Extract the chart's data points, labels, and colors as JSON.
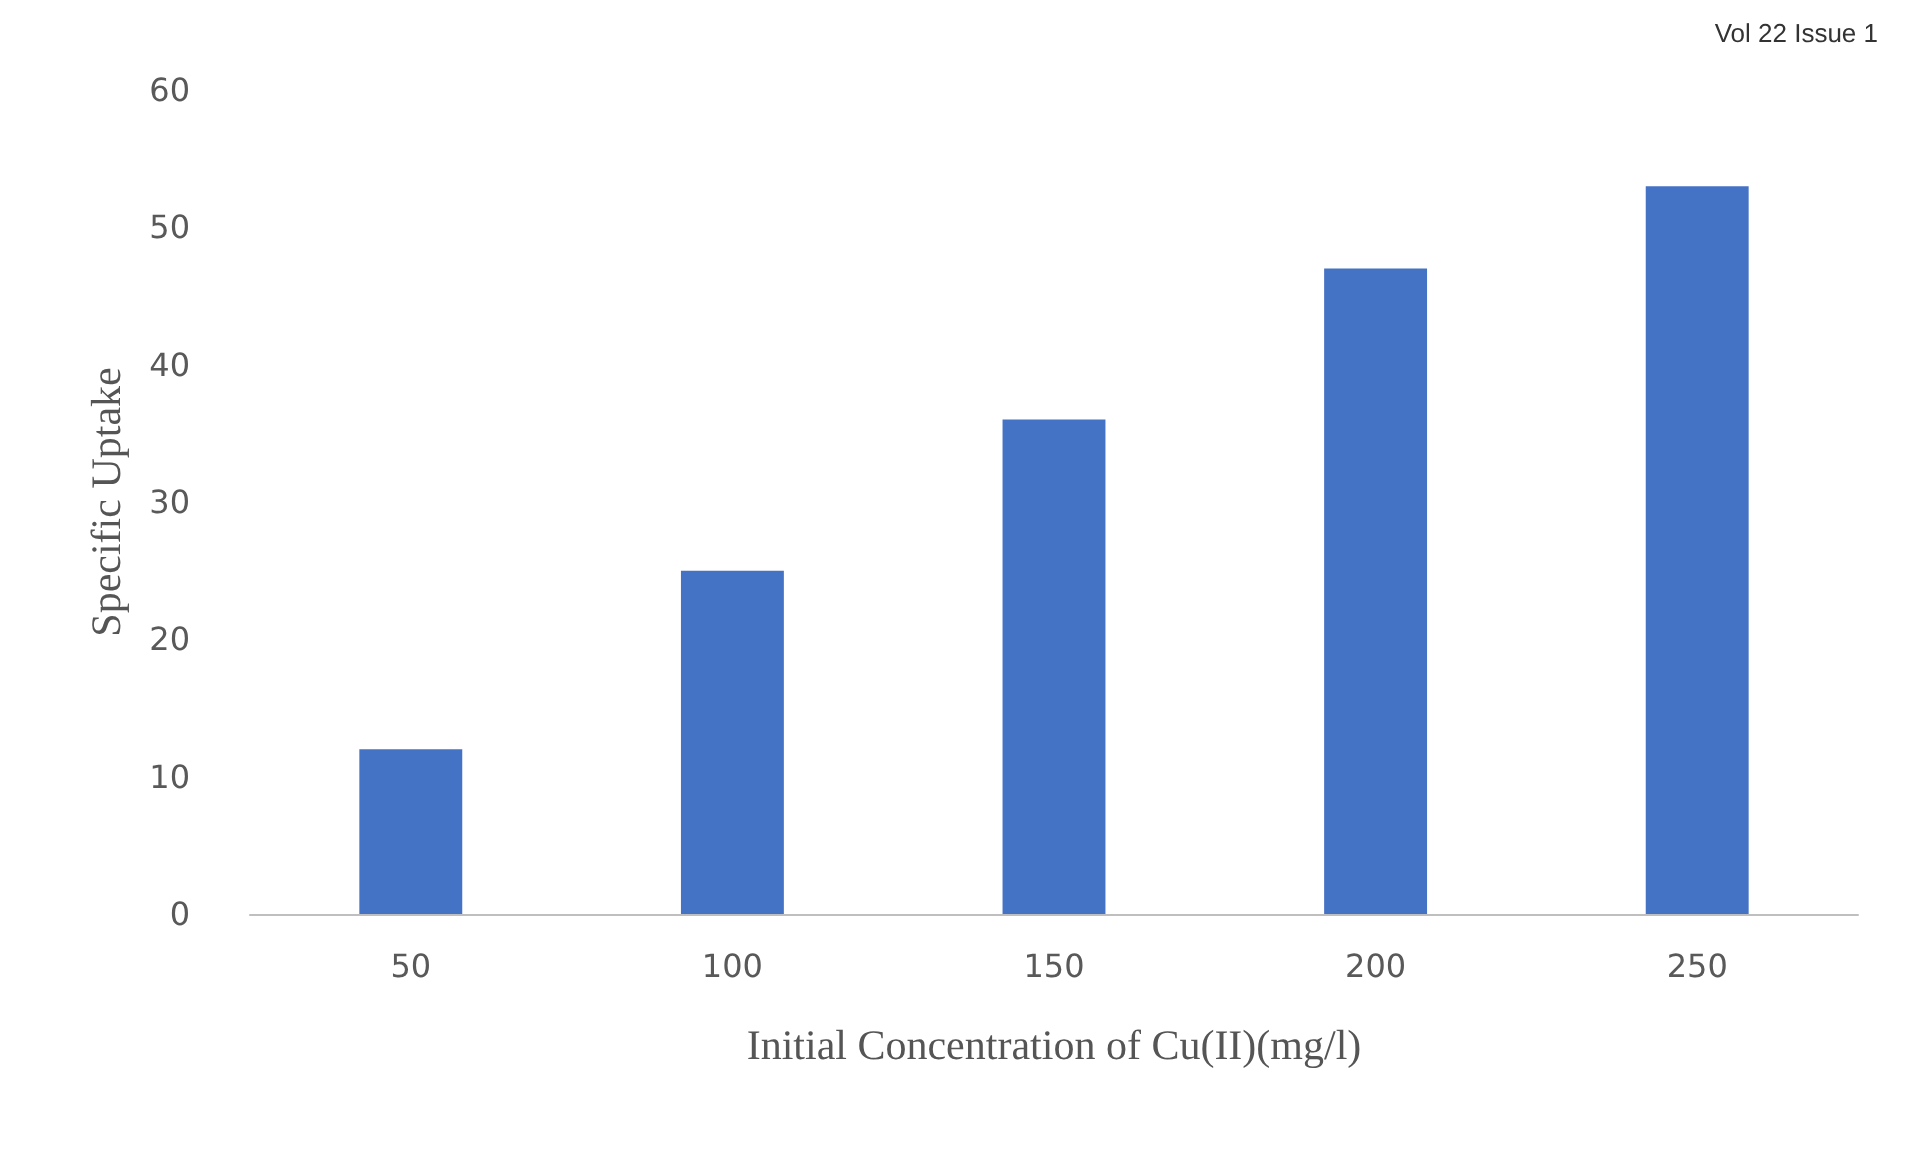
{
  "chart_data": {
    "type": "bar",
    "xlabel": "Initial Concentration of Cu(II)(mg/l)",
    "ylabel": "Specific Uptake",
    "categories": [
      "50",
      "100",
      "150",
      "200",
      "250"
    ],
    "values": [
      12,
      25,
      36,
      47,
      53
    ],
    "color": "#4472c4",
    "ylim": [
      0,
      60
    ],
    "yticks": [
      0,
      10,
      20,
      30,
      40,
      50,
      60
    ],
    "grid": false,
    "annotations": [
      "Vol 22 Issue 1"
    ]
  }
}
